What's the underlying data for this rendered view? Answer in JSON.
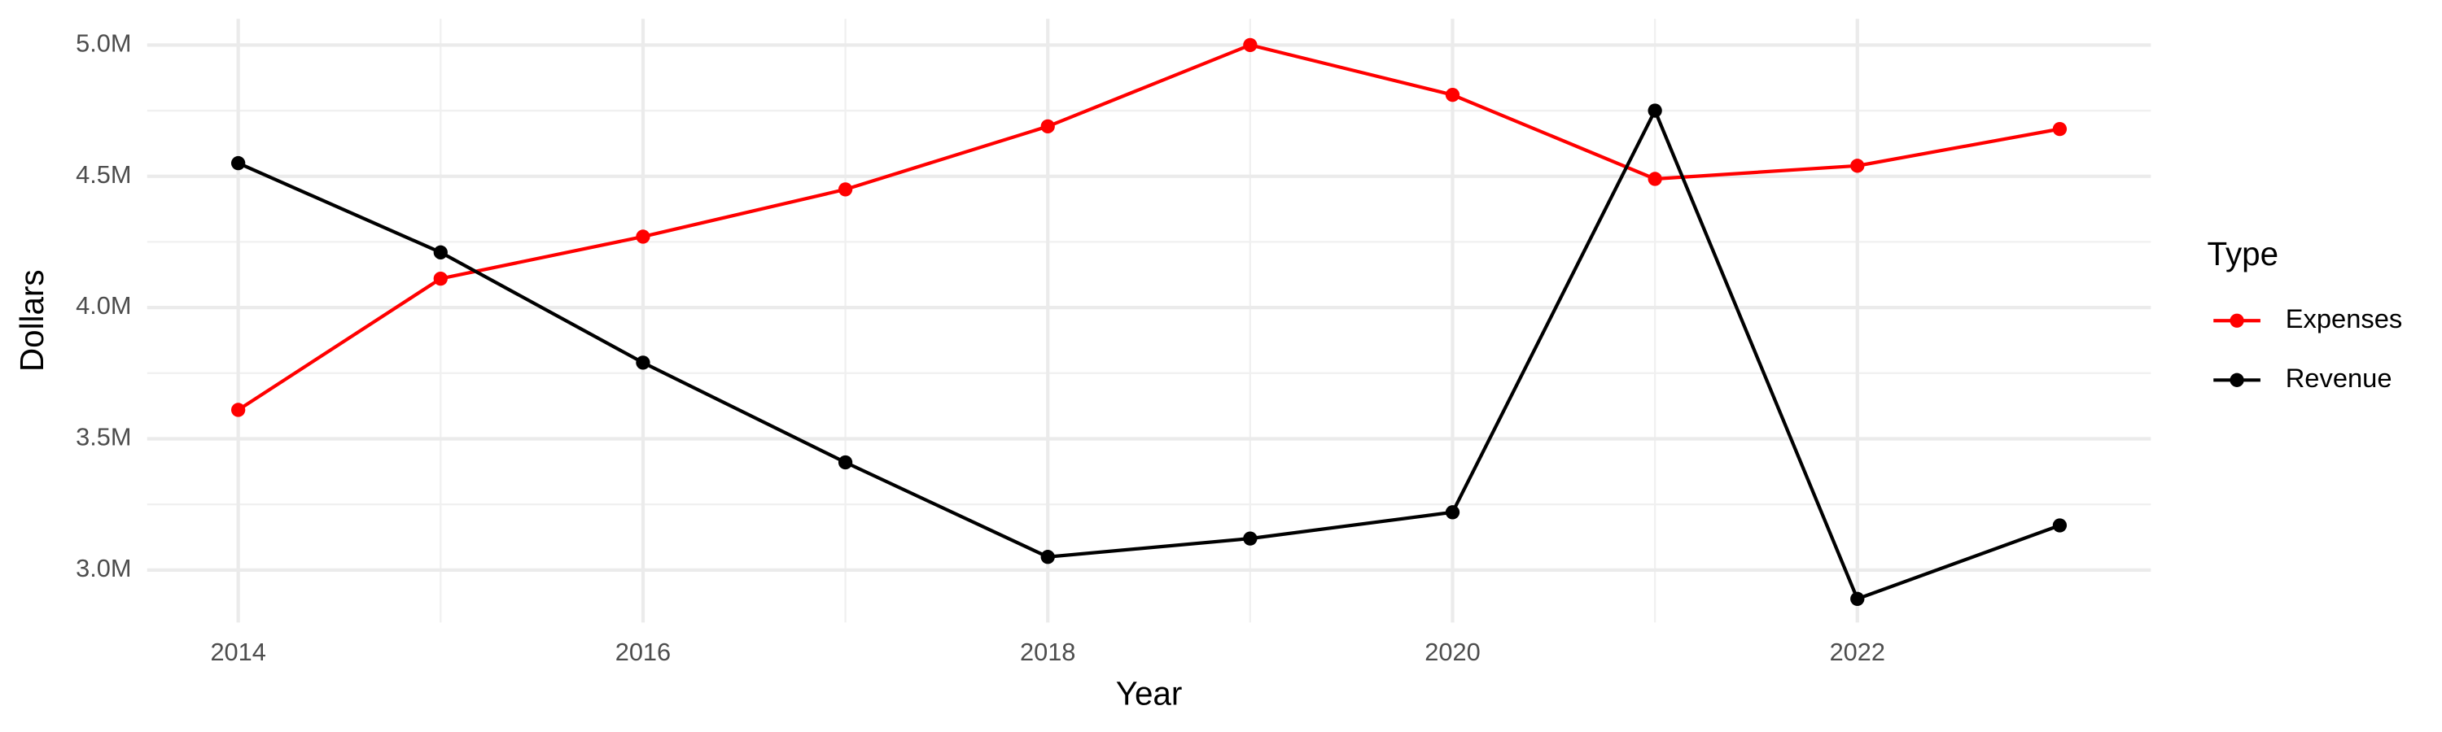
{
  "chart_data": {
    "type": "line",
    "x_label": "Year",
    "y_label": "Dollars",
    "legend_title": "Type",
    "legend_position": "right",
    "grid": true,
    "x": [
      2014,
      2015,
      2016,
      2017,
      2018,
      2019,
      2020,
      2021,
      2022,
      2023
    ],
    "series": [
      {
        "name": "Expenses",
        "color": "#ff0000",
        "values": [
          3610000,
          4110000,
          4270000,
          4450000,
          4690000,
          5000000,
          4810000,
          4490000,
          4540000,
          4680000
        ]
      },
      {
        "name": "Revenue",
        "color": "#000000",
        "values": [
          4550000,
          4210000,
          3790000,
          3410000,
          3050000,
          3120000,
          3220000,
          4750000,
          2890000,
          3170000
        ]
      }
    ],
    "xlim": [
      2013.55,
      2023.45
    ],
    "xticks": [
      2014,
      2016,
      2018,
      2020,
      2022
    ],
    "ylim": [
      2800000,
      5100000
    ],
    "yticks": [
      {
        "value": 3000000,
        "label": "3.0M"
      },
      {
        "value": 3500000,
        "label": "3.5M"
      },
      {
        "value": 4000000,
        "label": "4.0M"
      },
      {
        "value": 4500000,
        "label": "4.5M"
      },
      {
        "value": 5000000,
        "label": "5.0M"
      }
    ]
  }
}
